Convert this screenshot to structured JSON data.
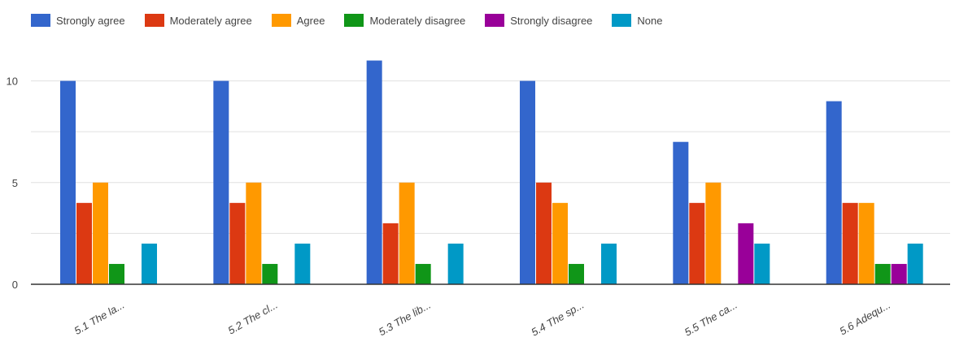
{
  "chart_data": {
    "type": "bar",
    "categories": [
      "5.1 The la...",
      "5.2 The cl...",
      "5.3 The lib...",
      "5.4 The sp...",
      "5.5 The ca...",
      "5.6 Adequ..."
    ],
    "series": [
      {
        "name": "Strongly agree",
        "color": "#3366cc",
        "values": [
          10,
          10,
          11,
          10,
          7,
          9
        ]
      },
      {
        "name": "Moderately agree",
        "color": "#dc3912",
        "values": [
          4,
          4,
          3,
          5,
          4,
          4
        ]
      },
      {
        "name": "Agree",
        "color": "#ff9900",
        "values": [
          5,
          5,
          5,
          4,
          5,
          4
        ]
      },
      {
        "name": "Moderately disagree",
        "color": "#109618",
        "values": [
          1,
          1,
          1,
          1,
          0,
          1
        ]
      },
      {
        "name": "Strongly disagree",
        "color": "#990099",
        "values": [
          0,
          0,
          0,
          0,
          3,
          1
        ]
      },
      {
        "name": "None",
        "color": "#0099c6",
        "values": [
          2,
          2,
          2,
          2,
          2,
          2
        ]
      }
    ],
    "yticks": [
      0,
      5,
      10
    ],
    "ylim": [
      0,
      11.5
    ],
    "grid": true,
    "legend_position": "top-left"
  }
}
